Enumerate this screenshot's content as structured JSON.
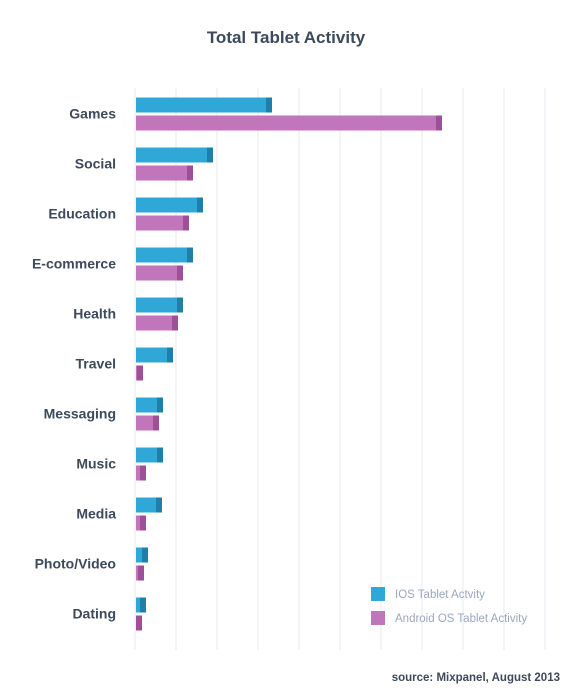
{
  "chart_data": {
    "type": "bar",
    "orientation": "horizontal",
    "title": "Total Tablet Activity",
    "categories": [
      "Games",
      "Social",
      "Education",
      "E-commerce",
      "Health",
      "Travel",
      "Messaging",
      "Music",
      "Media",
      "Photo/Video",
      "Dating"
    ],
    "series": [
      {
        "name": "IOS Tablet Actvity",
        "color": "#2fa8d8",
        "accent": "#1f7fa6",
        "values": [
          136,
          77,
          67,
          57,
          47,
          37,
          27,
          27,
          26,
          12,
          10
        ]
      },
      {
        "name": "Android OS Tablet Activity",
        "color": "#c176bb",
        "accent": "#9d4f97",
        "values": [
          306,
          57,
          53,
          47,
          42,
          7,
          23,
          10,
          10,
          8,
          6
        ]
      }
    ],
    "xlim": [
      0,
      410
    ],
    "grid": true,
    "legend_position": "bottom-right",
    "source": "source: Mixpanel, August 2013"
  }
}
